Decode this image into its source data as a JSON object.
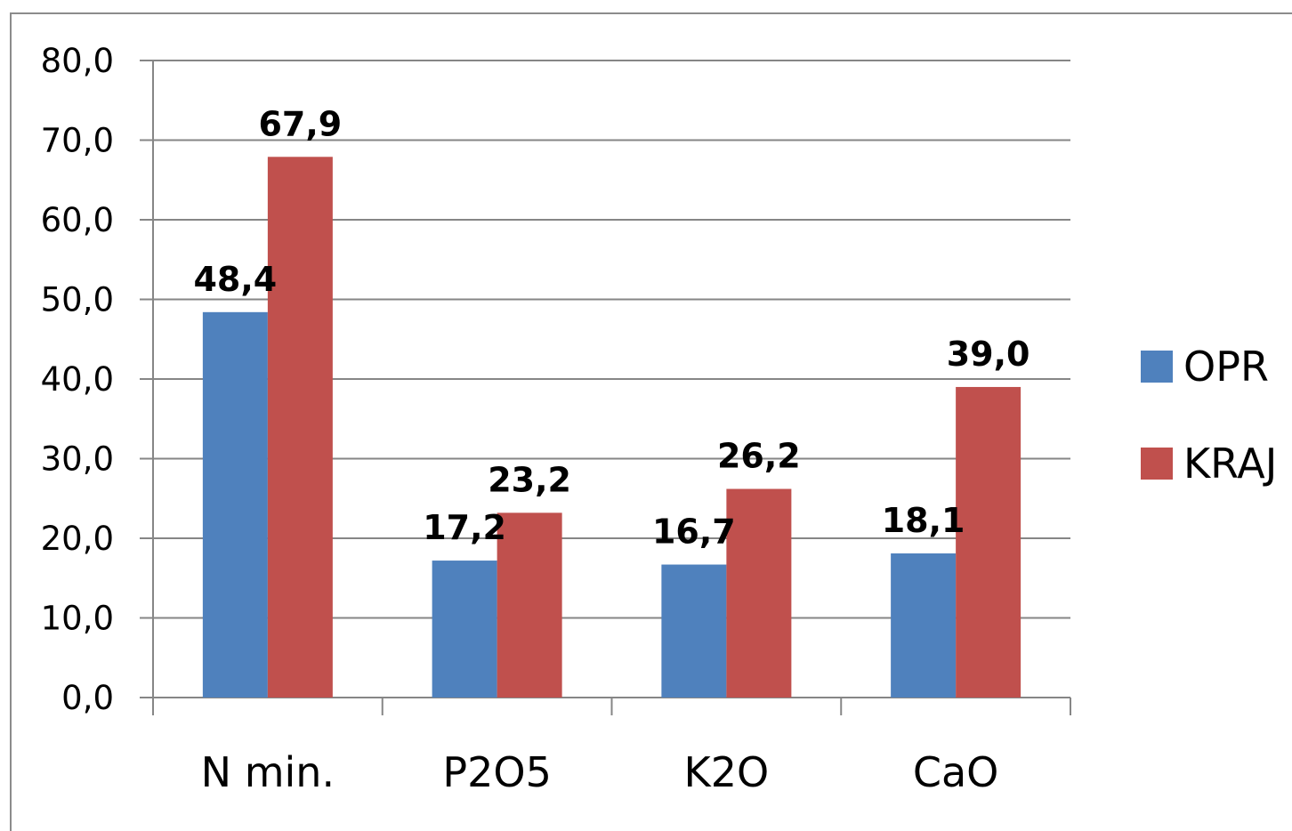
{
  "chart_data": {
    "type": "bar",
    "categories": [
      "N min.",
      "P2O5",
      "K2O",
      "CaO"
    ],
    "series": [
      {
        "name": "OPR",
        "values": [
          48.4,
          17.2,
          16.7,
          18.1
        ],
        "labels": [
          "48,4",
          "17,2",
          "16,7",
          "18,1"
        ],
        "color": "#4f81bd"
      },
      {
        "name": "KRAJ",
        "values": [
          67.9,
          23.2,
          26.2,
          39.0
        ],
        "labels": [
          "67,9",
          "23,2",
          "26,2",
          "39,0"
        ],
        "color": "#c0504d"
      }
    ],
    "ylim": [
      0,
      80
    ],
    "y_ticks": [
      0,
      10,
      20,
      30,
      40,
      50,
      60,
      70,
      80
    ],
    "y_tick_labels": [
      "0,0",
      "10,0",
      "20,0",
      "30,0",
      "40,0",
      "50,0",
      "60,0",
      "70,0",
      "80,0"
    ],
    "grid": true,
    "legend_position": "right",
    "title": "",
    "xlabel": "",
    "ylabel": ""
  }
}
